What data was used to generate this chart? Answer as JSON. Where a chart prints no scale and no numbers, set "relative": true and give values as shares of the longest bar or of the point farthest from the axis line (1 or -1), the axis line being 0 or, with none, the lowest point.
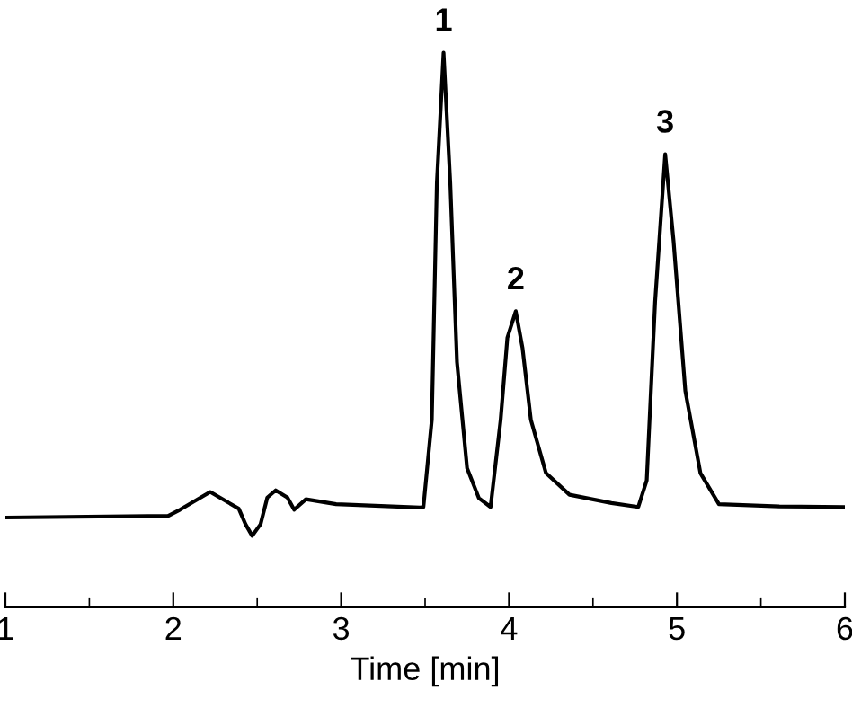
{
  "chart_data": {
    "type": "line",
    "xlabel": "Time [min]",
    "relative": true,
    "color": "#000000",
    "x": [
      1.0,
      1.97,
      2.04,
      2.22,
      2.39,
      2.43,
      2.47,
      2.52,
      2.56,
      2.61,
      2.68,
      2.72,
      2.79,
      2.97,
      3.47,
      3.49,
      3.54,
      3.57,
      3.61,
      3.65,
      3.69,
      3.75,
      3.82,
      3.89,
      3.95,
      3.99,
      4.04,
      4.08,
      4.13,
      4.22,
      4.36,
      4.61,
      4.77,
      4.82,
      4.87,
      4.93,
      4.98,
      5.05,
      5.14,
      5.25,
      5.61,
      6.0
    ],
    "values": [
      0.162,
      0.165,
      0.176,
      0.208,
      0.178,
      0.15,
      0.129,
      0.15,
      0.198,
      0.211,
      0.198,
      0.176,
      0.195,
      0.186,
      0.18,
      0.181,
      0.338,
      0.765,
      1.0,
      0.765,
      0.442,
      0.251,
      0.197,
      0.181,
      0.338,
      0.486,
      0.534,
      0.468,
      0.338,
      0.242,
      0.203,
      0.188,
      0.181,
      0.229,
      0.551,
      0.817,
      0.66,
      0.39,
      0.242,
      0.186,
      0.182,
      0.181
    ],
    "xlim": [
      1,
      6
    ],
    "xticks": [
      1,
      2,
      3,
      4,
      5,
      6
    ],
    "grid": false,
    "marker": "none",
    "line_style": "solid",
    "annotations": [
      {
        "text": "1",
        "x": 3.61,
        "y": 1.0
      },
      {
        "text": "2",
        "x": 4.04,
        "y": 0.534
      },
      {
        "text": "3",
        "x": 4.93,
        "y": 0.817
      }
    ]
  }
}
